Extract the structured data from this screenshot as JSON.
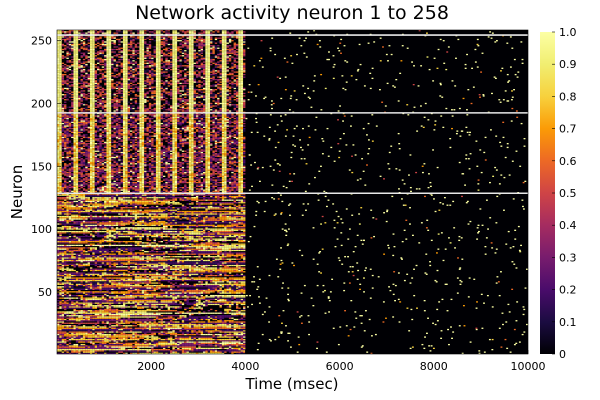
{
  "chart_data": {
    "type": "heatmap",
    "title": "Network activity neuron 1 to 258",
    "xlabel": "Time (msec)",
    "ylabel": "Neuron",
    "xlim": [
      0,
      10000
    ],
    "ylim": [
      1,
      258
    ],
    "x_ticks": [
      2000,
      4000,
      6000,
      8000,
      10000
    ],
    "y_ticks": [
      50,
      100,
      150,
      200,
      250
    ],
    "colorbar": {
      "colormap": "inferno",
      "range": [
        0,
        1
      ],
      "ticks": [
        0,
        0.1,
        0.2,
        0.3,
        0.4,
        0.5,
        0.6,
        0.7,
        0.8,
        0.9,
        1.0
      ],
      "tick_labels": [
        "0",
        "0.1",
        "0.2",
        "0.3",
        "0.4",
        "0.5",
        "0.6",
        "0.7",
        "0.8",
        "0.9",
        "1.0"
      ]
    },
    "regions": [
      {
        "neurons": [
          1,
          128
        ],
        "time": [
          0,
          4000
        ],
        "pattern": "dense horizontal stripes (rate-coded input)"
      },
      {
        "neurons": [
          129,
          192
        ],
        "time": [
          0,
          4000
        ],
        "pattern": "periodic vertical bands"
      },
      {
        "neurons": [
          193,
          258
        ],
        "time": [
          0,
          4000
        ],
        "pattern": "periodic vertical bands, dense"
      },
      {
        "neurons": [
          1,
          258
        ],
        "time": [
          4000,
          10000
        ],
        "pattern": "sparse random spikes"
      }
    ],
    "separator_lines_at_neuron": [
      129,
      193,
      255
    ],
    "background_value": 0,
    "spike_value": 1
  }
}
